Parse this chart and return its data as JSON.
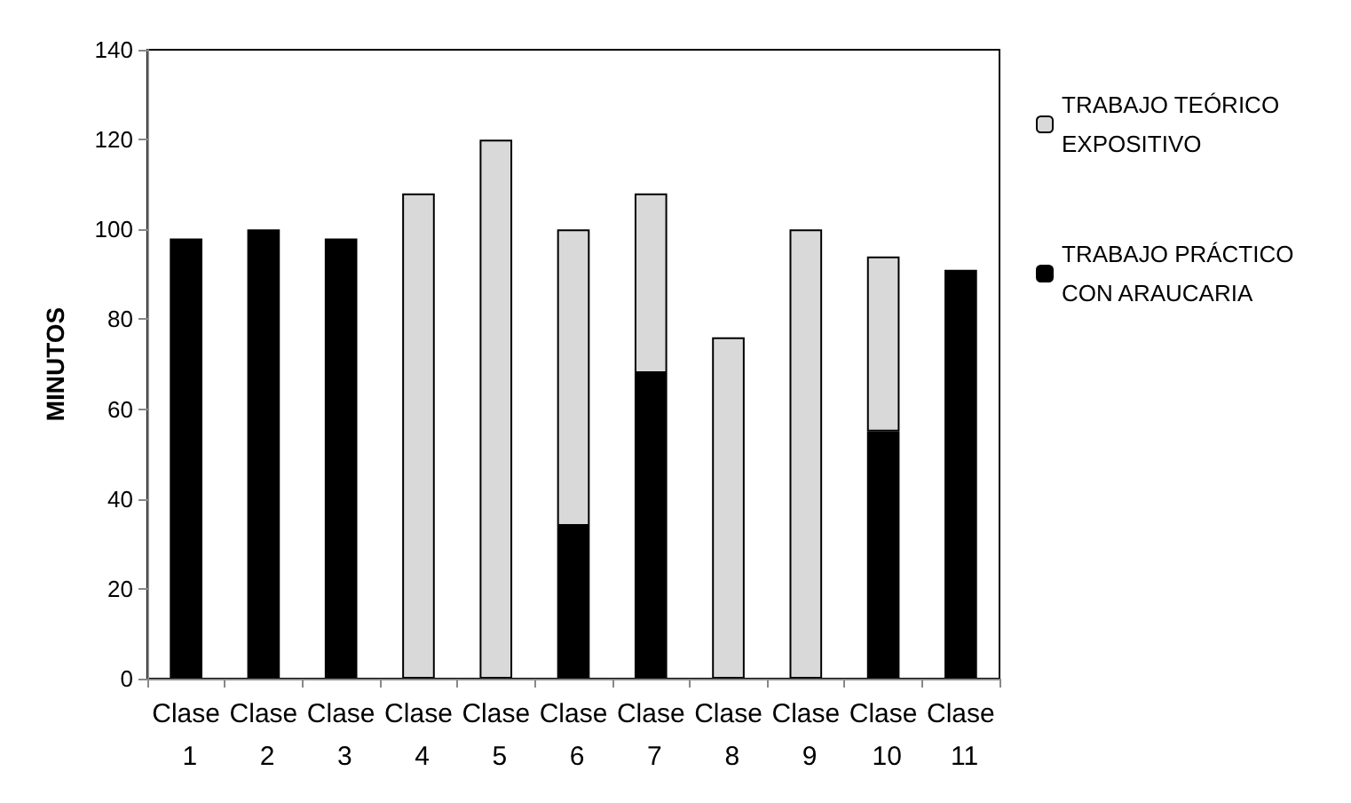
{
  "chart_data": {
    "type": "bar",
    "stacked": true,
    "ylabel": "MINUTOS",
    "categories": [
      "Clase 1",
      "Clase 2",
      "Clase 3",
      "Clase 4",
      "Clase 5",
      "Clase 6",
      "Clase 7",
      "Clase 8",
      "Clase 9",
      "Clase 10",
      "Clase 11"
    ],
    "series": [
      {
        "name": "TRABAJO PRÁCTICO CON ARAUCARIA",
        "color": "#000000",
        "values": [
          98,
          100,
          98,
          null,
          null,
          34,
          68,
          null,
          null,
          55,
          91
        ]
      },
      {
        "name": "TRABAJO TEÓRICO EXPOSITIVO",
        "color": "#d9d9d9",
        "values": [
          null,
          null,
          null,
          108,
          120,
          66,
          40,
          76,
          100,
          39,
          null
        ]
      }
    ],
    "ylim": [
      0,
      140
    ],
    "yticks": [
      0,
      20,
      40,
      60,
      80,
      100,
      120,
      140
    ],
    "grid": false,
    "legend": "right"
  }
}
